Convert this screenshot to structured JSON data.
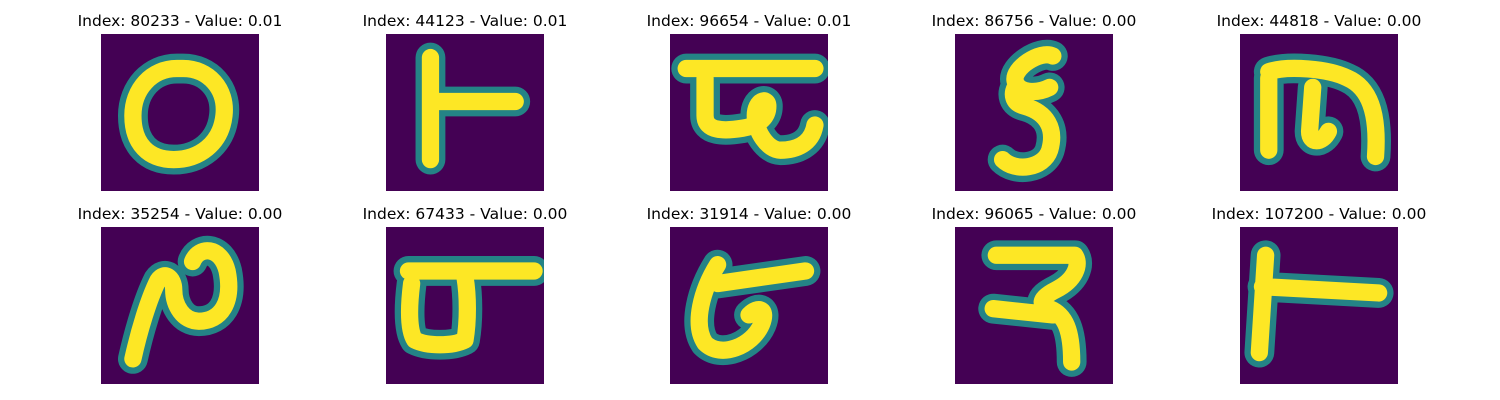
{
  "panels": [
    {
      "title": "Index: 80233 - Value: 0.01",
      "glyph": "glyph-zero-like"
    },
    {
      "title": "Index: 44123 - Value: 0.01",
      "glyph": "glyph-t-like"
    },
    {
      "title": "Index: 96654 - Value: 0.01",
      "glyph": "glyph-bar-loop"
    },
    {
      "title": "Index: 86756 - Value: 0.00",
      "glyph": "glyph-five-like"
    },
    {
      "title": "Index: 44818 - Value: 0.00",
      "glyph": "glyph-three-prong"
    },
    {
      "title": "Index: 35254 - Value: 0.00",
      "glyph": "glyph-n-loop"
    },
    {
      "title": "Index: 67433 - Value: 0.00",
      "glyph": "glyph-bar-box"
    },
    {
      "title": "Index: 31914 - Value: 0.00",
      "glyph": "glyph-bar-hook"
    },
    {
      "title": "Index: 96065 - Value: 0.00",
      "glyph": "glyph-ra-like"
    },
    {
      "title": "Index: 107200 - Value: 0.00",
      "glyph": "glyph-t-like"
    }
  ],
  "colors": {
    "background": "#440154",
    "edge": "#21918c",
    "stroke": "#fde725"
  }
}
